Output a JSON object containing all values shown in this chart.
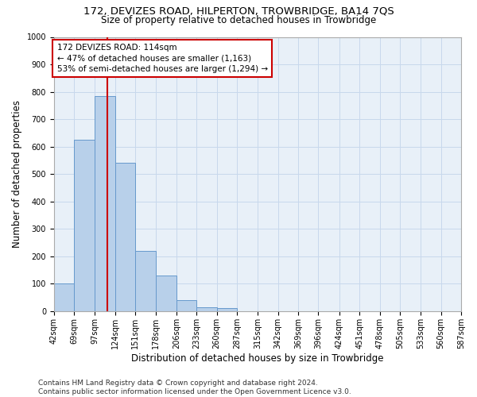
{
  "title": "172, DEVIZES ROAD, HILPERTON, TROWBRIDGE, BA14 7QS",
  "subtitle": "Size of property relative to detached houses in Trowbridge",
  "xlabel": "Distribution of detached houses by size in Trowbridge",
  "ylabel": "Number of detached properties",
  "bin_edges": [
    42,
    69,
    97,
    124,
    151,
    178,
    206,
    233,
    260,
    287,
    315,
    342,
    369,
    396,
    424,
    451,
    478,
    505,
    533,
    560,
    587
  ],
  "bar_heights": [
    100,
    625,
    785,
    540,
    220,
    130,
    40,
    15,
    10,
    0,
    0,
    0,
    0,
    0,
    0,
    0,
    0,
    0,
    0,
    0
  ],
  "tick_labels": [
    "42sqm",
    "69sqm",
    "97sqm",
    "124sqm",
    "151sqm",
    "178sqm",
    "206sqm",
    "233sqm",
    "260sqm",
    "287sqm",
    "315sqm",
    "342sqm",
    "369sqm",
    "396sqm",
    "424sqm",
    "451sqm",
    "478sqm",
    "505sqm",
    "533sqm",
    "560sqm",
    "587sqm"
  ],
  "bar_color": "#b8d0ea",
  "bar_edge_color": "#6699cc",
  "vline_x": 114,
  "vline_color": "#cc0000",
  "annotation_text": "172 DEVIZES ROAD: 114sqm\n← 47% of detached houses are smaller (1,163)\n53% of semi-detached houses are larger (1,294) →",
  "annotation_box_color": "#cc0000",
  "ylim": [
    0,
    1000
  ],
  "yticks": [
    0,
    100,
    200,
    300,
    400,
    500,
    600,
    700,
    800,
    900,
    1000
  ],
  "grid_color": "#c8d8ec",
  "background_color": "#e8f0f8",
  "footer_text": "Contains HM Land Registry data © Crown copyright and database right 2024.\nContains public sector information licensed under the Open Government Licence v3.0.",
  "title_fontsize": 9.5,
  "subtitle_fontsize": 8.5,
  "xlabel_fontsize": 8.5,
  "ylabel_fontsize": 8.5,
  "tick_fontsize": 7,
  "annotation_fontsize": 7.5,
  "footer_fontsize": 6.5
}
